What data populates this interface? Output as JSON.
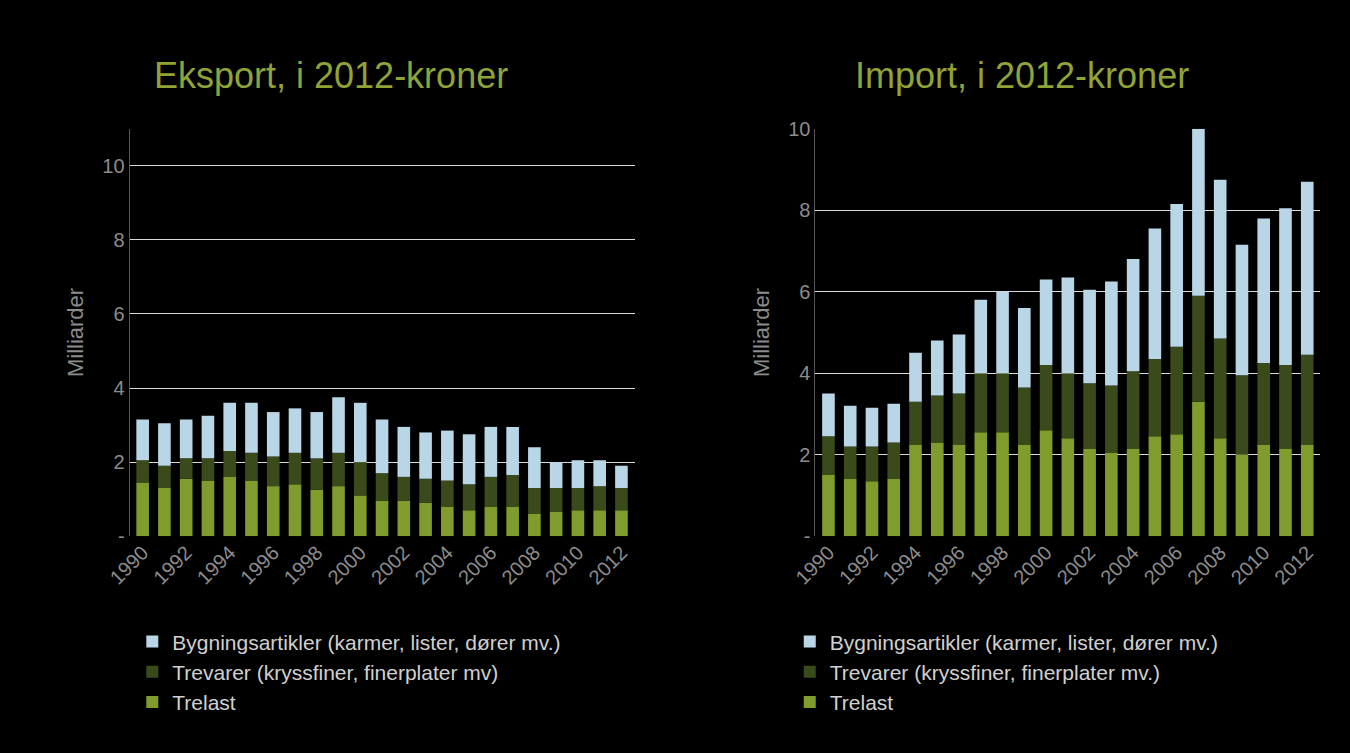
{
  "chart_data": [
    {
      "type": "bar",
      "title": "Eksport, i 2012-kroner",
      "ylabel": "Milliarder",
      "stacked": true,
      "grid": true,
      "legend": "bottom",
      "categories": [
        "1990",
        null,
        "1992",
        null,
        "1994",
        null,
        "1996",
        null,
        "1998",
        null,
        "2000",
        null,
        "2002",
        null,
        "2004",
        null,
        "2006",
        null,
        "2008",
        null,
        "2010",
        null,
        "2012"
      ],
      "ylim": [
        0,
        11
      ],
      "yticks": [
        {
          "value": 0,
          "label": "-"
        },
        2,
        4,
        6,
        8,
        10
      ],
      "series": [
        {
          "name": "Trelast",
          "color": "#7f9c2c",
          "values": [
            1.45,
            1.3,
            1.55,
            1.5,
            1.6,
            1.5,
            1.35,
            1.4,
            1.25,
            1.35,
            1.1,
            0.95,
            0.95,
            0.9,
            0.8,
            0.7,
            0.8,
            0.8,
            0.6,
            0.65,
            0.7,
            0.7,
            0.7
          ]
        },
        {
          "name": "Trevarer (kryssfiner, finerplater mv)",
          "color": "#3a4a1a",
          "values": [
            0.6,
            0.6,
            0.55,
            0.6,
            0.7,
            0.75,
            0.8,
            0.85,
            0.85,
            0.9,
            0.9,
            0.75,
            0.65,
            0.65,
            0.7,
            0.7,
            0.8,
            0.85,
            0.7,
            0.65,
            0.6,
            0.65,
            0.6
          ]
        },
        {
          "name": "Bygningsartikler (karmer, lister, dører mv.)",
          "color": "#b9d6e6",
          "values": [
            1.1,
            1.15,
            1.05,
            1.15,
            1.3,
            1.35,
            1.2,
            1.2,
            1.25,
            1.5,
            1.6,
            1.45,
            1.35,
            1.25,
            1.35,
            1.35,
            1.35,
            1.3,
            1.1,
            0.7,
            0.75,
            0.7,
            0.6
          ]
        }
      ]
    },
    {
      "type": "bar",
      "title": "Import, i 2012-kroner",
      "ylabel": "Milliarder",
      "stacked": true,
      "grid": true,
      "legend": "bottom",
      "categories": [
        "1990",
        null,
        "1992",
        null,
        "1994",
        null,
        "1996",
        null,
        "1998",
        null,
        "2000",
        null,
        "2002",
        null,
        "2004",
        null,
        "2006",
        null,
        "2008",
        null,
        "2010",
        null,
        "2012"
      ],
      "ylim": [
        0,
        10
      ],
      "yticks": [
        {
          "value": 0,
          "label": "-"
        },
        2,
        4,
        6,
        8,
        10
      ],
      "series": [
        {
          "name": "Trelast",
          "color": "#7f9c2c",
          "values": [
            1.5,
            1.4,
            1.35,
            1.4,
            2.25,
            2.3,
            2.25,
            2.55,
            2.55,
            2.25,
            2.6,
            2.4,
            2.15,
            2.05,
            2.15,
            2.45,
            2.5,
            3.3,
            2.4,
            2.0,
            2.25,
            2.15,
            2.25
          ]
        },
        {
          "name": "Trevarer (kryssfiner, finerplater mv.)",
          "color": "#3a4a1a",
          "values": [
            0.95,
            0.8,
            0.85,
            0.9,
            1.05,
            1.15,
            1.25,
            1.45,
            1.45,
            1.4,
            1.6,
            1.6,
            1.6,
            1.65,
            1.9,
            1.9,
            2.15,
            2.6,
            2.45,
            1.95,
            2.0,
            2.05,
            2.2
          ]
        },
        {
          "name": "Bygningsartikler (karmer, lister, dører mv.)",
          "color": "#b9d6e6",
          "values": [
            1.05,
            1.0,
            0.95,
            0.95,
            1.2,
            1.35,
            1.45,
            1.8,
            2.0,
            1.95,
            2.1,
            2.35,
            2.3,
            2.55,
            2.75,
            3.2,
            3.5,
            4.1,
            3.9,
            3.2,
            3.55,
            3.85,
            4.25
          ]
        }
      ]
    }
  ]
}
